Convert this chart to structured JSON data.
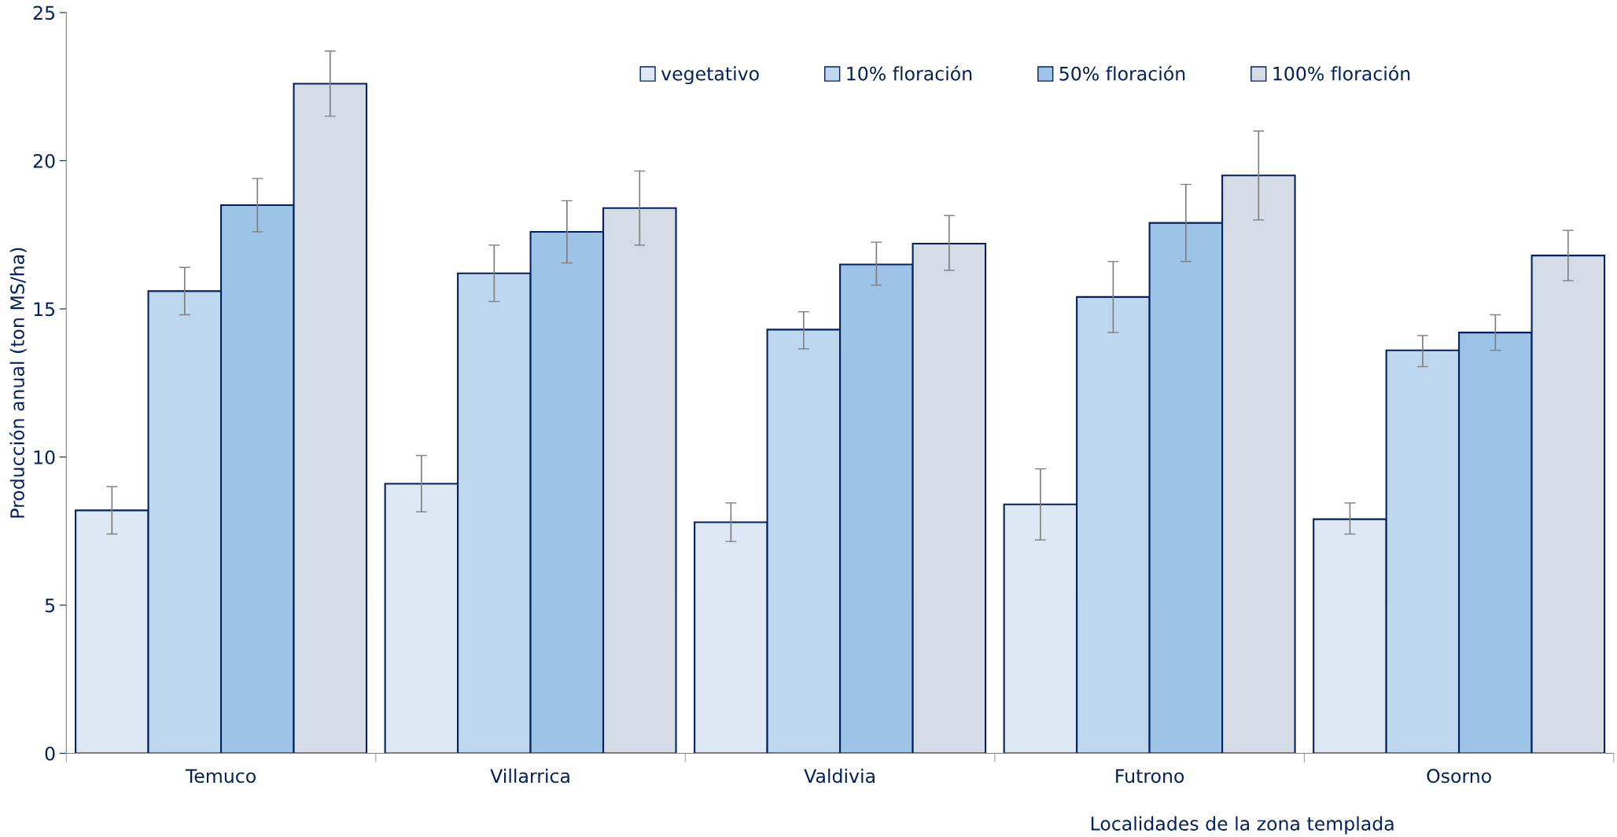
{
  "chart_data": {
    "type": "bar",
    "xlabel": "Localidades de la zona templada",
    "ylabel": "Producción anual (ton MS/ha)",
    "categories": [
      "Temuco",
      "Villarrica",
      "Valdivia",
      "Futrono",
      "Osorno"
    ],
    "series": [
      {
        "name": "vegetativo",
        "color": "#dee8f5",
        "values": [
          8.2,
          9.1,
          7.8,
          8.4,
          7.9
        ],
        "errors": [
          [
            7.4,
            9.0
          ],
          [
            8.15,
            10.05
          ],
          [
            7.15,
            8.45
          ],
          [
            7.2,
            9.6
          ],
          [
            7.4,
            8.45
          ]
        ]
      },
      {
        "name": "10% floración",
        "color": "#bdd7ee",
        "values": [
          15.6,
          16.2,
          14.3,
          15.4,
          13.6
        ],
        "errors": [
          [
            14.8,
            16.4
          ],
          [
            15.25,
            17.15
          ],
          [
            13.65,
            14.9
          ],
          [
            14.2,
            16.6
          ],
          [
            13.05,
            14.1
          ]
        ]
      },
      {
        "name": "50% floración",
        "color": "#9dc3e6",
        "values": [
          18.5,
          17.6,
          16.5,
          17.9,
          14.2
        ],
        "errors": [
          [
            17.6,
            19.4
          ],
          [
            16.55,
            18.65
          ],
          [
            15.8,
            17.25
          ],
          [
            16.6,
            19.2
          ],
          [
            13.6,
            14.8
          ]
        ]
      },
      {
        "name": "100% floración",
        "color": "#d6dce5",
        "values": [
          22.6,
          18.4,
          17.2,
          19.5,
          16.8
        ],
        "errors": [
          [
            21.5,
            23.7
          ],
          [
            17.15,
            19.65
          ],
          [
            16.3,
            18.15
          ],
          [
            18.0,
            21.0
          ],
          [
            15.95,
            17.65
          ]
        ]
      }
    ],
    "ylim": [
      0,
      25
    ],
    "yticks": [
      0,
      5,
      10,
      15,
      20,
      25
    ],
    "grid": false,
    "legend": "top"
  }
}
